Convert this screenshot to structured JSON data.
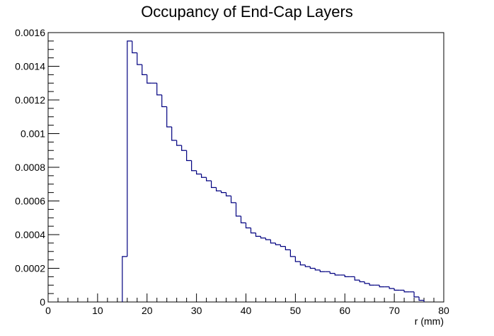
{
  "chart_data": {
    "type": "histogram",
    "title": "Occupancy of End-Cap Layers",
    "xlabel": "r (mm)",
    "ylabel": "",
    "xlim": [
      0,
      80
    ],
    "ylim": [
      0,
      0.0016
    ],
    "x_ticks": [
      "0",
      "10",
      "20",
      "30",
      "40",
      "50",
      "60",
      "70",
      "80"
    ],
    "y_ticks": [
      "0",
      "0.0002",
      "0.0004",
      "0.0006",
      "0.0008",
      "0.001",
      "0.0012",
      "0.0014",
      "0.0016"
    ],
    "bin_width": 1,
    "bins_start": [
      15,
      16,
      17,
      18,
      19,
      20,
      21,
      22,
      23,
      24,
      25,
      26,
      27,
      28,
      29,
      30,
      31,
      32,
      33,
      34,
      35,
      36,
      37,
      38,
      39,
      40,
      41,
      42,
      43,
      44,
      45,
      46,
      47,
      48,
      49,
      50,
      51,
      52,
      53,
      54,
      55,
      56,
      57,
      58,
      59,
      60,
      61,
      62,
      63,
      64,
      65,
      66,
      67,
      68,
      69,
      70,
      71,
      72,
      73,
      74,
      75
    ],
    "values": [
      0.00027,
      0.00155,
      0.00148,
      0.00141,
      0.00135,
      0.0013,
      0.0013,
      0.00123,
      0.00116,
      0.00104,
      0.00096,
      0.00093,
      0.0009,
      0.00084,
      0.00078,
      0.00076,
      0.00074,
      0.00072,
      0.00068,
      0.00066,
      0.00065,
      0.00063,
      0.00059,
      0.00051,
      0.00047,
      0.00044,
      0.00041,
      0.00039,
      0.00038,
      0.00037,
      0.00035,
      0.00034,
      0.00033,
      0.00031,
      0.00027,
      0.00024,
      0.00022,
      0.00021,
      0.0002,
      0.00019,
      0.00018,
      0.00018,
      0.00017,
      0.00016,
      0.00016,
      0.00015,
      0.00015,
      0.00013,
      0.00012,
      0.00011,
      0.0001,
      0.0001,
      9e-05,
      9e-05,
      8e-05,
      7e-05,
      7e-05,
      6e-05,
      6e-05,
      3e-05,
      1e-05
    ],
    "line_color": "#000080",
    "grid": false,
    "legend": false
  }
}
